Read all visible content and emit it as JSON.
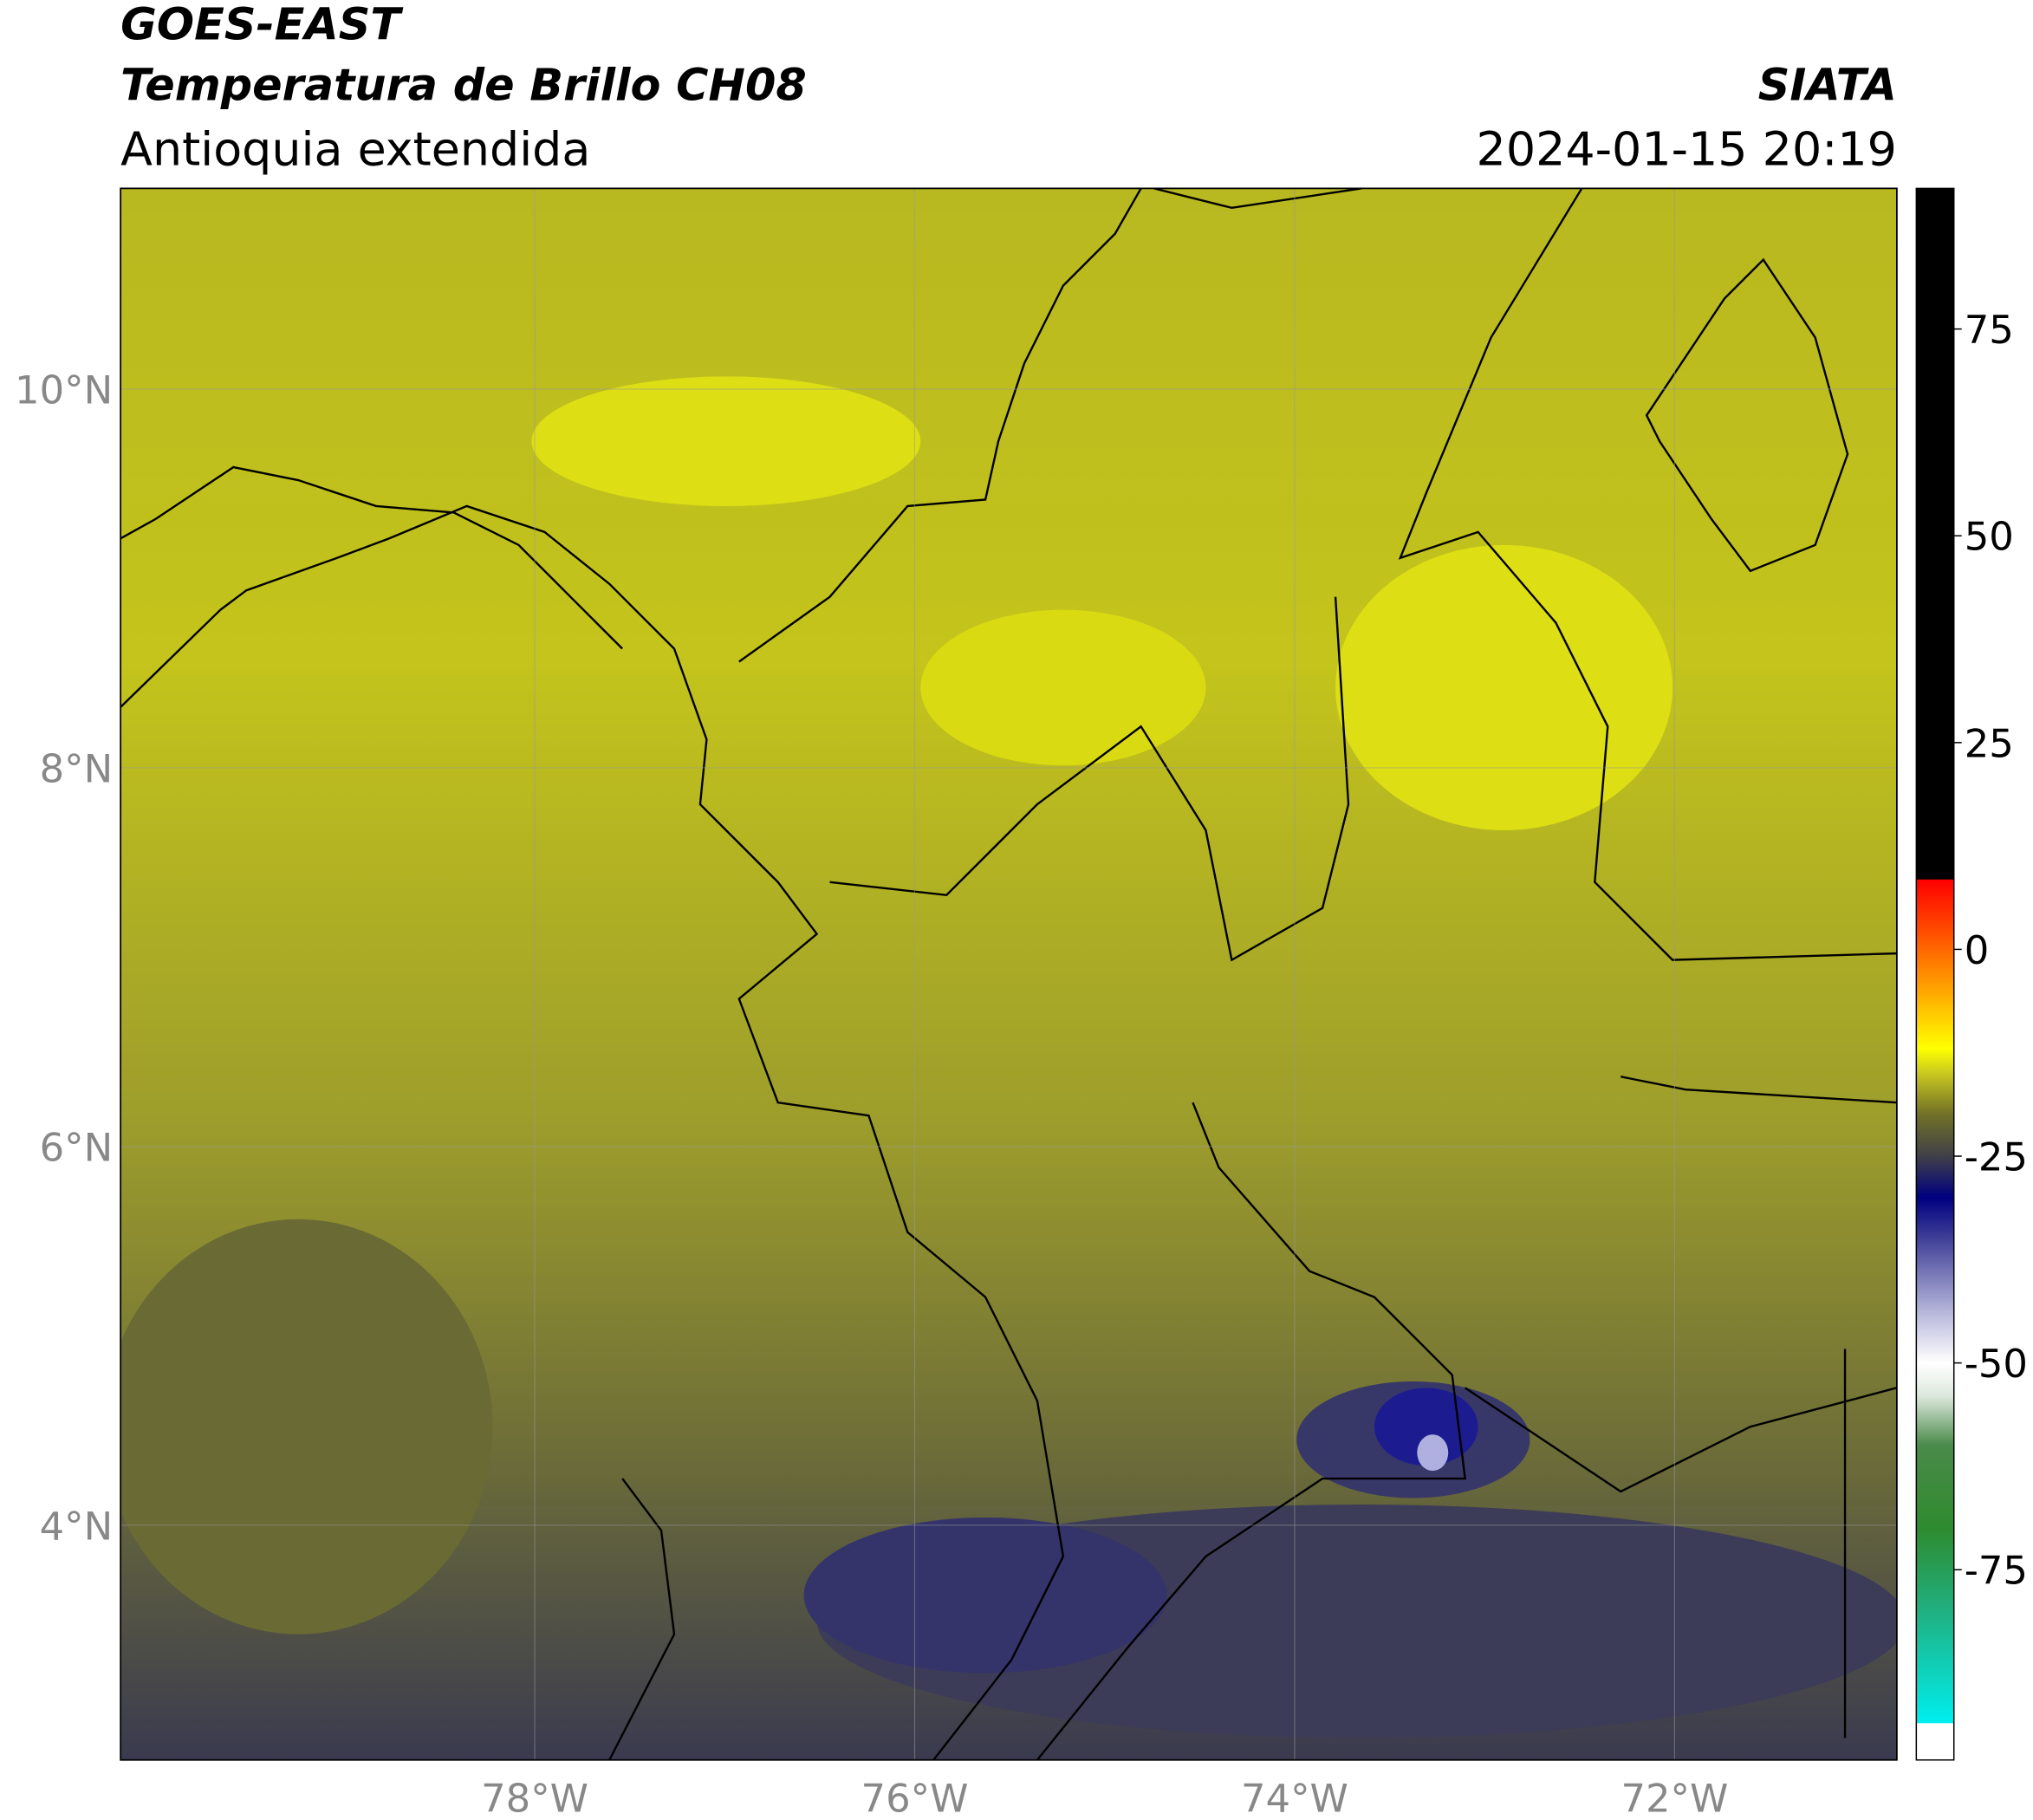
{
  "header": {
    "satellite": "GOES-EAST",
    "product": "Temperatura de Brillo CH08",
    "region": "Antioquia extendida",
    "agency": "SIATA",
    "datetime": "2024-01-15 20:19"
  },
  "map": {
    "lonlim": [
      -80.18,
      -70.83
    ],
    "latlim": [
      2.76,
      11.06
    ],
    "lonticks": [
      {
        "value": -78,
        "label": "78°W"
      },
      {
        "value": -76,
        "label": "76°W"
      },
      {
        "value": -74,
        "label": "74°W"
      },
      {
        "value": -72,
        "label": "72°W"
      }
    ],
    "latticks": [
      {
        "value": 10,
        "label": "10°N"
      },
      {
        "value": 8,
        "label": "8°N"
      },
      {
        "value": 6,
        "label": "6°N"
      },
      {
        "value": 4,
        "label": "4°N"
      }
    ],
    "grid": true
  },
  "colorbar": {
    "lim": [
      -98,
      92
    ],
    "ticks": [
      75,
      50,
      25,
      0,
      -25,
      -50,
      -75
    ],
    "stops": [
      {
        "value": -98,
        "color": "#ffffff"
      },
      {
        "value": -93.6,
        "color": "#ffffff"
      },
      {
        "value": -93.5,
        "color": "#00eeee"
      },
      {
        "value": -80,
        "color": "#20b080"
      },
      {
        "value": -70,
        "color": "#2e8b2e"
      },
      {
        "value": -60,
        "color": "#4a8a4a"
      },
      {
        "value": -54,
        "color": "#dde8dd"
      },
      {
        "value": -50,
        "color": "#ffffff"
      },
      {
        "value": -44,
        "color": "#b8b8dc"
      },
      {
        "value": -35,
        "color": "#404098"
      },
      {
        "value": -30,
        "color": "#000080"
      },
      {
        "value": -25,
        "color": "#404048"
      },
      {
        "value": -20,
        "color": "#707028"
      },
      {
        "value": -15,
        "color": "#c8c820"
      },
      {
        "value": -12,
        "color": "#ffff00"
      },
      {
        "value": -4,
        "color": "#ff9900"
      },
      {
        "value": 8.4,
        "color": "#ff0000"
      },
      {
        "value": 8.5,
        "color": "#000000"
      },
      {
        "value": 92,
        "color": "#000000"
      }
    ]
  }
}
